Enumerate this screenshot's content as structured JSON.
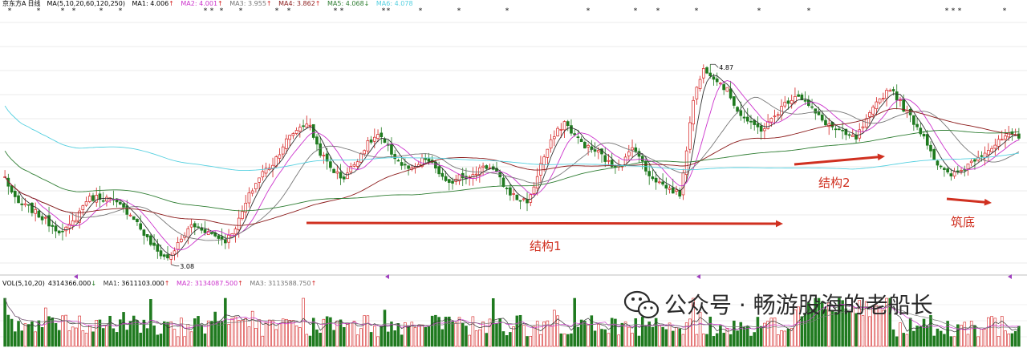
{
  "chart_data": {
    "type": "candlestick",
    "stock": {
      "name": "京东方A",
      "period": "日线"
    },
    "price_indicator": {
      "label": "MA(5,10,20,60,120,250)",
      "lines": [
        {
          "name": "MA1",
          "value": "4.006",
          "arrow": "↑",
          "color": "#333333"
        },
        {
          "name": "MA2",
          "value": "4.001",
          "arrow": "↑",
          "color": "#cc33cc"
        },
        {
          "name": "MA3",
          "value": "3.955",
          "arrow": "↑",
          "color": "#777777"
        },
        {
          "name": "MA4",
          "value": "3.862",
          "arrow": "↑",
          "color": "#8b1a1a"
        },
        {
          "name": "MA5",
          "value": "4.068",
          "arrow": "↓",
          "color": "#2e7d32"
        },
        {
          "name": "MA6",
          "value": "4.078",
          "arrow": "",
          "color": "#55d0e0"
        }
      ]
    },
    "high_label": "4.87",
    "low_label": "3.08",
    "ylim": [
      3.0,
      5.05
    ],
    "close_path": [
      3.75,
      3.55,
      3.52,
      3.45,
      3.38,
      3.32,
      3.42,
      3.58,
      3.6,
      3.58,
      3.52,
      3.45,
      3.3,
      3.18,
      3.12,
      3.25,
      3.38,
      3.35,
      3.3,
      3.26,
      3.4,
      3.62,
      3.78,
      3.86,
      4.02,
      4.12,
      4.18,
      3.95,
      3.82,
      3.74,
      3.86,
      4.0,
      4.08,
      3.96,
      3.85,
      3.8,
      3.9,
      3.82,
      3.68,
      3.78,
      3.74,
      3.85,
      3.8,
      3.66,
      3.58,
      3.57,
      3.86,
      4.05,
      4.18,
      4.06,
      3.98,
      3.94,
      3.84,
      3.86,
      4.0,
      3.8,
      3.72,
      3.66,
      3.62,
      4.35,
      4.6,
      4.52,
      4.42,
      4.25,
      4.16,
      4.12,
      4.22,
      4.33,
      4.4,
      4.3,
      4.2,
      4.14,
      4.08,
      4.05,
      4.2,
      4.35,
      4.45,
      4.3,
      4.18,
      4.05,
      3.85,
      3.76,
      3.8,
      3.88,
      3.95,
      4.0,
      4.08,
      4.05
    ],
    "annotations": [
      {
        "label": "结构1",
        "color": "#d03020"
      },
      {
        "label": "结构2",
        "color": "#d03020"
      },
      {
        "label": "筑底",
        "color": "#d03020"
      }
    ],
    "volume_indicator": {
      "label": "VOL(5,10,20)",
      "value": "4314366.000",
      "value_arrow": "↓",
      "ma_lines": [
        {
          "name": "MA1",
          "value": "3611103.000",
          "arrow": "↑",
          "color": "#333333"
        },
        {
          "name": "MA2",
          "value": "3134087.500",
          "arrow": "↑",
          "color": "#cc33cc"
        },
        {
          "name": "MA3",
          "value": "3113588.750",
          "arrow": "↑",
          "color": "#777777"
        }
      ]
    },
    "colors": {
      "up": "#d41f1f",
      "down": "#1f7a1f"
    }
  },
  "watermark": {
    "text": "公众号 · 畅游股海的老船长",
    "icon": "wechat-icon"
  }
}
